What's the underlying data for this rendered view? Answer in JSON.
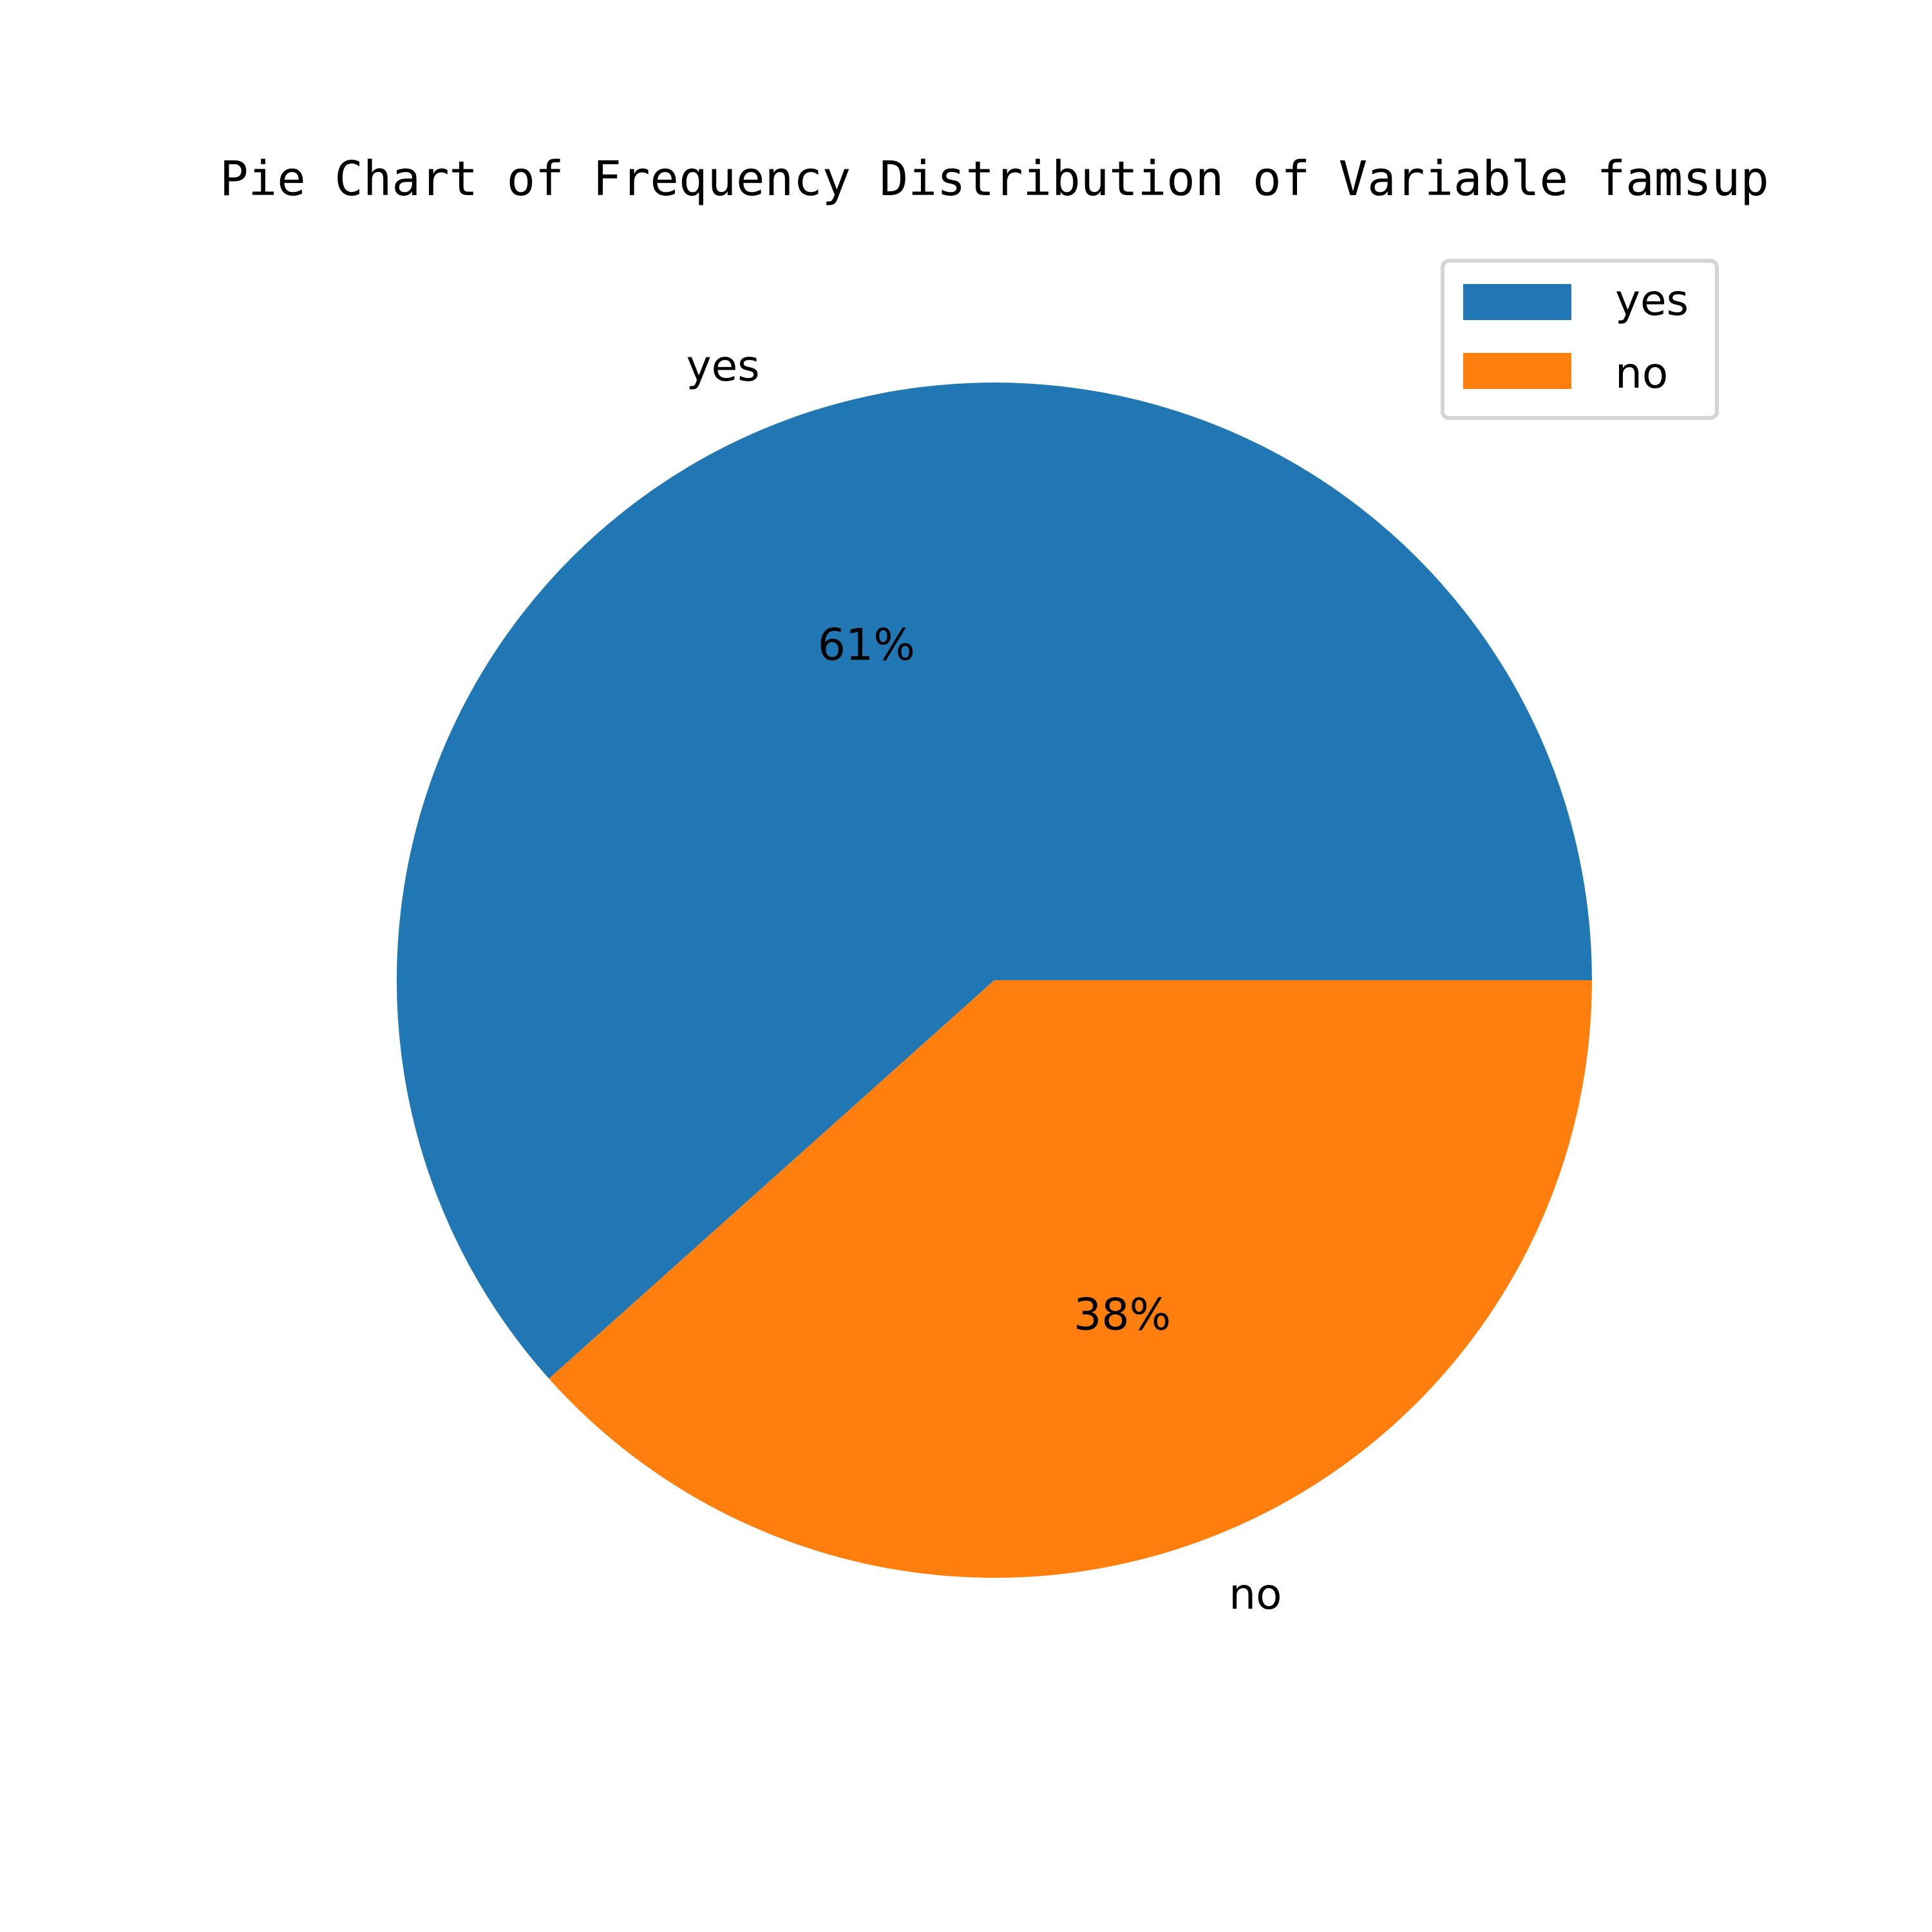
{
  "chart_data": {
    "type": "pie",
    "title": "Pie Chart of Frequency Distribution of Variable famsup",
    "categories": [
      "yes",
      "no"
    ],
    "values": [
      61,
      38
    ],
    "pct_labels": [
      "61%",
      "38%"
    ],
    "colors": [
      "#2077b4",
      "#ff7f0e"
    ],
    "start_angle": 0,
    "direction": "counterclockwise",
    "legend": {
      "placement": "top-right",
      "entries": [
        "yes",
        "no"
      ]
    }
  }
}
